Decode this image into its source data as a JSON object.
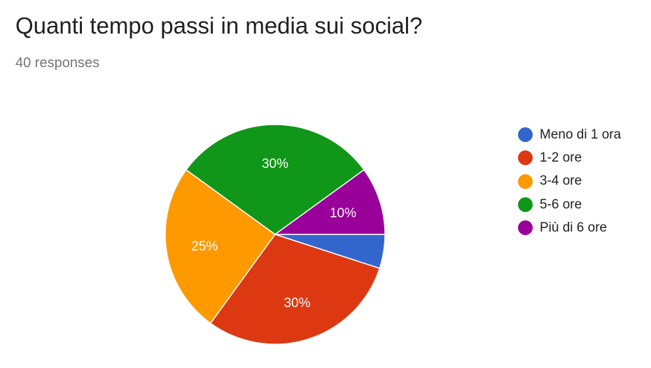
{
  "header": {
    "question": "Quanti tempo passi in media sui social?",
    "responses": "40 responses"
  },
  "chart_data": {
    "type": "pie",
    "categories": [
      "Meno di 1 ora",
      "1-2 ore",
      "3-4 ore",
      "5-6 ore",
      "Più di 6 ore"
    ],
    "values": [
      5,
      30,
      25,
      30,
      10
    ],
    "data_labels": [
      "",
      "30%",
      "25%",
      "30%",
      "10%"
    ],
    "colors": [
      "#3366cc",
      "#dc3912",
      "#ff9900",
      "#109618",
      "#990099"
    ],
    "start_angle_deg": 90,
    "direction": "clockwise",
    "legend_position": "right"
  }
}
